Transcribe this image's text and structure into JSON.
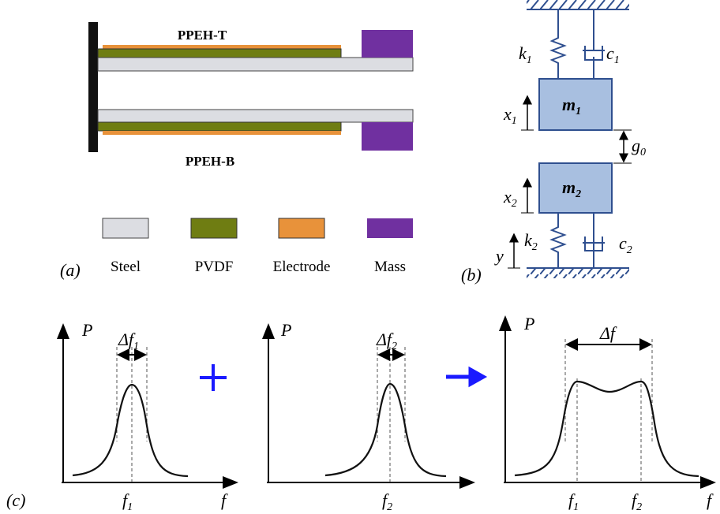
{
  "panel_a": {
    "label": "(a)",
    "top_beam": "PPEH-T",
    "bottom_beam": "PPEH-B",
    "legend": [
      "Steel",
      "PVDF",
      "Electrode",
      "Mass"
    ]
  },
  "panel_b": {
    "label": "(b)",
    "k1": {
      "base": "k",
      "sub": "1"
    },
    "c1": {
      "base": "c",
      "sub": "1"
    },
    "m1": {
      "base": "m",
      "sub": "1"
    },
    "x1": {
      "base": "x",
      "sub": "1"
    },
    "g0": {
      "base": "g",
      "sub": "0"
    },
    "m2": {
      "base": "m",
      "sub": "2"
    },
    "x2": {
      "base": "x",
      "sub": "2"
    },
    "k2": {
      "base": "k",
      "sub": "2"
    },
    "c2": {
      "base": "c",
      "sub": "2"
    },
    "y": "y"
  },
  "panel_c": {
    "label": "(c)",
    "graphs": [
      {
        "y_axis": "P",
        "bandwidth": {
          "base": "Δf",
          "sub": "1"
        },
        "peaks": [
          {
            "base": "f",
            "sub": "1"
          }
        ],
        "x_axis": "f"
      },
      {
        "y_axis": "P",
        "bandwidth": {
          "base": "Δf",
          "sub": "2"
        },
        "peaks": [
          {
            "base": "f",
            "sub": "2"
          }
        ]
      },
      {
        "y_axis": "P",
        "bandwidth": {
          "base": "Δf"
        },
        "peaks": [
          {
            "base": "f",
            "sub": "1"
          },
          {
            "base": "f",
            "sub": "2"
          }
        ],
        "x_axis": "f"
      }
    ]
  }
}
